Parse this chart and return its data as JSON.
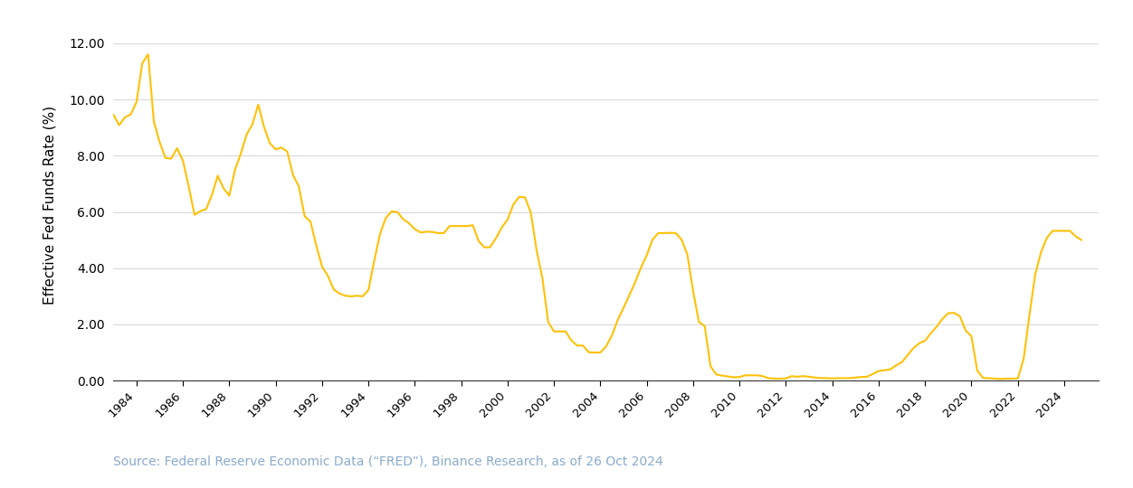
{
  "ylabel": "Effective Fed Funds Rate (%)",
  "source_text": "Source: Federal Reserve Economic Data (“FRED”), Binance Research, as of 26 Oct 2024",
  "line_color": "#FFC107",
  "background_color": "#FFFFFF",
  "grid_color": "#D0D0D0",
  "source_color": "#8AABCC",
  "ylim": [
    0,
    12.5
  ],
  "yticks": [
    0.0,
    2.0,
    4.0,
    6.0,
    8.0,
    10.0,
    12.0
  ],
  "xlim": [
    1983.0,
    2025.5
  ],
  "xticks": [
    1984,
    1986,
    1988,
    1990,
    1992,
    1994,
    1996,
    1998,
    2000,
    2002,
    2004,
    2006,
    2008,
    2010,
    2012,
    2014,
    2016,
    2018,
    2020,
    2022,
    2024
  ],
  "data": [
    [
      1983.0,
      9.47
    ],
    [
      1983.25,
      9.09
    ],
    [
      1983.5,
      9.37
    ],
    [
      1983.75,
      9.47
    ],
    [
      1984.0,
      9.91
    ],
    [
      1984.25,
      11.29
    ],
    [
      1984.5,
      11.61
    ],
    [
      1984.75,
      9.21
    ],
    [
      1985.0,
      8.48
    ],
    [
      1985.25,
      7.92
    ],
    [
      1985.5,
      7.9
    ],
    [
      1985.75,
      8.27
    ],
    [
      1986.0,
      7.83
    ],
    [
      1986.25,
      6.92
    ],
    [
      1986.5,
      5.9
    ],
    [
      1986.75,
      6.03
    ],
    [
      1987.0,
      6.1
    ],
    [
      1987.25,
      6.6
    ],
    [
      1987.5,
      7.29
    ],
    [
      1987.75,
      6.85
    ],
    [
      1988.0,
      6.58
    ],
    [
      1988.25,
      7.51
    ],
    [
      1988.5,
      8.08
    ],
    [
      1988.75,
      8.76
    ],
    [
      1989.0,
      9.12
    ],
    [
      1989.25,
      9.82
    ],
    [
      1989.5,
      9.02
    ],
    [
      1989.75,
      8.45
    ],
    [
      1990.0,
      8.23
    ],
    [
      1990.25,
      8.29
    ],
    [
      1990.5,
      8.15
    ],
    [
      1990.75,
      7.31
    ],
    [
      1991.0,
      6.91
    ],
    [
      1991.25,
      5.85
    ],
    [
      1991.5,
      5.66
    ],
    [
      1991.75,
      4.81
    ],
    [
      1992.0,
      4.06
    ],
    [
      1992.25,
      3.73
    ],
    [
      1992.5,
      3.25
    ],
    [
      1992.75,
      3.1
    ],
    [
      1993.0,
      3.02
    ],
    [
      1993.25,
      3.0
    ],
    [
      1993.5,
      3.02
    ],
    [
      1993.75,
      3.0
    ],
    [
      1994.0,
      3.22
    ],
    [
      1994.25,
      4.26
    ],
    [
      1994.5,
      5.22
    ],
    [
      1994.75,
      5.79
    ],
    [
      1995.0,
      6.02
    ],
    [
      1995.25,
      6.0
    ],
    [
      1995.5,
      5.74
    ],
    [
      1995.75,
      5.6
    ],
    [
      1996.0,
      5.39
    ],
    [
      1996.25,
      5.27
    ],
    [
      1996.5,
      5.3
    ],
    [
      1996.75,
      5.29
    ],
    [
      1997.0,
      5.25
    ],
    [
      1997.25,
      5.25
    ],
    [
      1997.5,
      5.5
    ],
    [
      1997.75,
      5.5
    ],
    [
      1998.0,
      5.5
    ],
    [
      1998.25,
      5.5
    ],
    [
      1998.5,
      5.53
    ],
    [
      1998.75,
      4.97
    ],
    [
      1999.0,
      4.74
    ],
    [
      1999.25,
      4.75
    ],
    [
      1999.5,
      5.07
    ],
    [
      1999.75,
      5.45
    ],
    [
      2000.0,
      5.73
    ],
    [
      2000.25,
      6.27
    ],
    [
      2000.5,
      6.54
    ],
    [
      2000.75,
      6.52
    ],
    [
      2001.0,
      5.98
    ],
    [
      2001.25,
      4.64
    ],
    [
      2001.5,
      3.65
    ],
    [
      2001.75,
      2.09
    ],
    [
      2002.0,
      1.75
    ],
    [
      2002.25,
      1.75
    ],
    [
      2002.5,
      1.75
    ],
    [
      2002.75,
      1.43
    ],
    [
      2003.0,
      1.25
    ],
    [
      2003.25,
      1.25
    ],
    [
      2003.5,
      1.01
    ],
    [
      2003.75,
      1.0
    ],
    [
      2004.0,
      1.0
    ],
    [
      2004.25,
      1.22
    ],
    [
      2004.5,
      1.61
    ],
    [
      2004.75,
      2.16
    ],
    [
      2005.0,
      2.59
    ],
    [
      2005.25,
      3.04
    ],
    [
      2005.5,
      3.5
    ],
    [
      2005.75,
      4.02
    ],
    [
      2006.0,
      4.46
    ],
    [
      2006.25,
      5.02
    ],
    [
      2006.5,
      5.25
    ],
    [
      2006.75,
      5.25
    ],
    [
      2007.0,
      5.26
    ],
    [
      2007.25,
      5.25
    ],
    [
      2007.5,
      5.02
    ],
    [
      2007.75,
      4.49
    ],
    [
      2008.0,
      3.18
    ],
    [
      2008.25,
      2.09
    ],
    [
      2008.5,
      1.94
    ],
    [
      2008.75,
      0.51
    ],
    [
      2009.0,
      0.22
    ],
    [
      2009.25,
      0.18
    ],
    [
      2009.5,
      0.15
    ],
    [
      2009.75,
      0.12
    ],
    [
      2010.0,
      0.13
    ],
    [
      2010.25,
      0.19
    ],
    [
      2010.5,
      0.19
    ],
    [
      2010.75,
      0.19
    ],
    [
      2011.0,
      0.16
    ],
    [
      2011.25,
      0.09
    ],
    [
      2011.5,
      0.07
    ],
    [
      2011.75,
      0.07
    ],
    [
      2012.0,
      0.08
    ],
    [
      2012.25,
      0.16
    ],
    [
      2012.5,
      0.14
    ],
    [
      2012.75,
      0.16
    ],
    [
      2013.0,
      0.14
    ],
    [
      2013.25,
      0.11
    ],
    [
      2013.5,
      0.09
    ],
    [
      2013.75,
      0.09
    ],
    [
      2014.0,
      0.08
    ],
    [
      2014.25,
      0.09
    ],
    [
      2014.5,
      0.09
    ],
    [
      2014.75,
      0.09
    ],
    [
      2015.0,
      0.11
    ],
    [
      2015.25,
      0.13
    ],
    [
      2015.5,
      0.14
    ],
    [
      2015.75,
      0.24
    ],
    [
      2016.0,
      0.34
    ],
    [
      2016.25,
      0.37
    ],
    [
      2016.5,
      0.4
    ],
    [
      2016.75,
      0.54
    ],
    [
      2017.0,
      0.66
    ],
    [
      2017.25,
      0.91
    ],
    [
      2017.5,
      1.16
    ],
    [
      2017.75,
      1.33
    ],
    [
      2018.0,
      1.42
    ],
    [
      2018.25,
      1.69
    ],
    [
      2018.5,
      1.92
    ],
    [
      2018.75,
      2.2
    ],
    [
      2019.0,
      2.4
    ],
    [
      2019.25,
      2.41
    ],
    [
      2019.5,
      2.29
    ],
    [
      2019.75,
      1.78
    ],
    [
      2020.0,
      1.58
    ],
    [
      2020.25,
      0.36
    ],
    [
      2020.5,
      0.09
    ],
    [
      2020.75,
      0.09
    ],
    [
      2021.0,
      0.07
    ],
    [
      2021.25,
      0.06
    ],
    [
      2021.5,
      0.07
    ],
    [
      2021.75,
      0.07
    ],
    [
      2022.0,
      0.08
    ],
    [
      2022.25,
      0.77
    ],
    [
      2022.5,
      2.33
    ],
    [
      2022.75,
      3.78
    ],
    [
      2023.0,
      4.57
    ],
    [
      2023.25,
      5.08
    ],
    [
      2023.5,
      5.33
    ],
    [
      2023.75,
      5.33
    ],
    [
      2024.0,
      5.33
    ],
    [
      2024.25,
      5.33
    ],
    [
      2024.5,
      5.13
    ],
    [
      2024.75,
      5.0
    ]
  ]
}
